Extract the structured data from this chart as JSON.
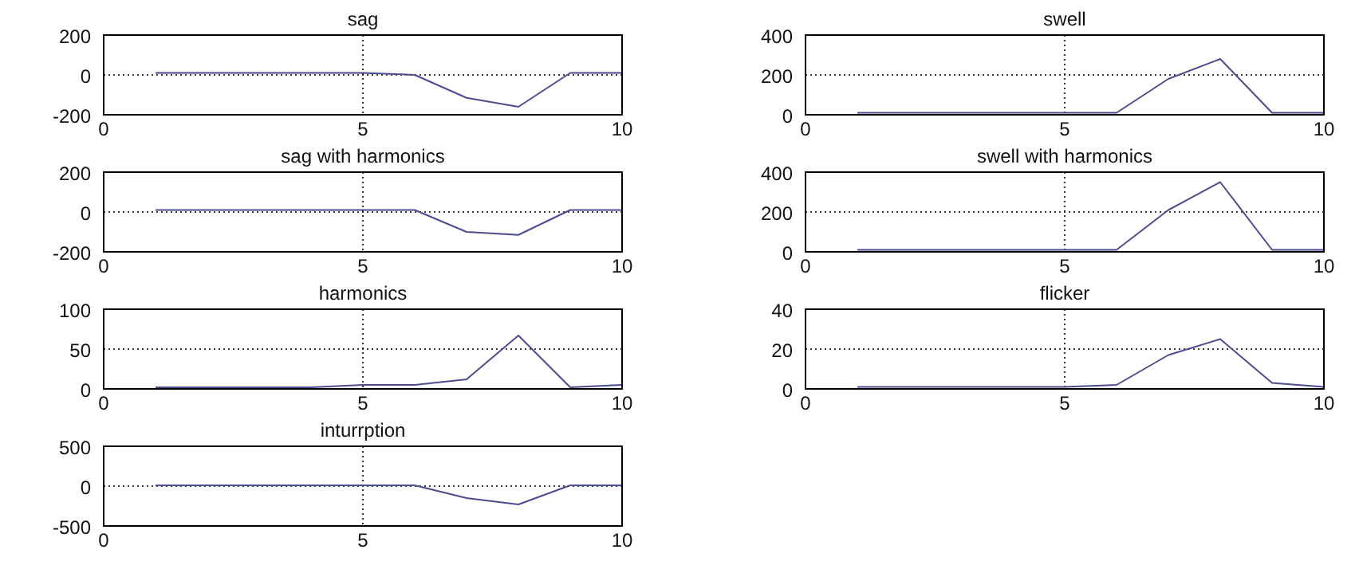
{
  "chart_data": [
    {
      "type": "line",
      "title": "sag",
      "x": [
        1,
        2,
        3,
        4,
        5,
        6,
        7,
        8,
        9,
        10
      ],
      "series": [
        {
          "color": "#4b4b8f",
          "values": [
            10,
            10,
            10,
            10,
            10,
            0,
            -115,
            -160,
            10,
            10
          ]
        }
      ],
      "xlim": [
        0,
        10
      ],
      "xticks": [
        0,
        5,
        10
      ],
      "ylim": [
        -200,
        200
      ],
      "yticks": [
        -200,
        0,
        200
      ],
      "grid": true
    },
    {
      "type": "line",
      "title": "swell",
      "x": [
        1,
        2,
        3,
        4,
        5,
        6,
        7,
        8,
        9,
        10
      ],
      "series": [
        {
          "color": "#4b4b8f",
          "values": [
            10,
            10,
            10,
            10,
            10,
            10,
            180,
            280,
            10,
            10
          ]
        }
      ],
      "xlim": [
        0,
        10
      ],
      "xticks": [
        0,
        5,
        10
      ],
      "ylim": [
        0,
        400
      ],
      "yticks": [
        0,
        200,
        400
      ],
      "grid": true
    },
    {
      "type": "line",
      "title": "sag with harmonics",
      "x": [
        1,
        2,
        3,
        4,
        5,
        6,
        7,
        8,
        9,
        10
      ],
      "series": [
        {
          "color": "#4b4b8f",
          "values": [
            10,
            10,
            10,
            10,
            10,
            10,
            -100,
            -115,
            10,
            10
          ]
        }
      ],
      "xlim": [
        0,
        10
      ],
      "xticks": [
        0,
        5,
        10
      ],
      "ylim": [
        -200,
        200
      ],
      "yticks": [
        -200,
        0,
        200
      ],
      "grid": true
    },
    {
      "type": "line",
      "title": "swell with harmonics",
      "x": [
        1,
        2,
        3,
        4,
        5,
        6,
        7,
        8,
        9,
        10
      ],
      "series": [
        {
          "color": "#4b4b8f",
          "values": [
            10,
            10,
            10,
            10,
            10,
            10,
            210,
            350,
            10,
            10
          ]
        }
      ],
      "xlim": [
        0,
        10
      ],
      "xticks": [
        0,
        5,
        10
      ],
      "ylim": [
        0,
        400
      ],
      "yticks": [
        0,
        200,
        400
      ],
      "grid": true
    },
    {
      "type": "line",
      "title": "harmonics",
      "x": [
        1,
        2,
        3,
        4,
        5,
        6,
        7,
        8,
        9,
        10
      ],
      "series": [
        {
          "color": "#4b4b8f",
          "values": [
            2,
            2,
            2,
            2,
            5,
            5,
            12,
            67,
            2,
            5
          ]
        }
      ],
      "xlim": [
        0,
        10
      ],
      "xticks": [
        0,
        5,
        10
      ],
      "ylim": [
        0,
        100
      ],
      "yticks": [
        0,
        50,
        100
      ],
      "grid": true
    },
    {
      "type": "line",
      "title": "flicker",
      "x": [
        1,
        2,
        3,
        4,
        5,
        6,
        7,
        8,
        9,
        10
      ],
      "series": [
        {
          "color": "#4b4b8f",
          "values": [
            1,
            1,
            1,
            1,
            1,
            2,
            17,
            25,
            3,
            1
          ]
        }
      ],
      "xlim": [
        0,
        10
      ],
      "xticks": [
        0,
        5,
        10
      ],
      "ylim": [
        0,
        40
      ],
      "yticks": [
        0,
        20,
        40
      ],
      "grid": true
    },
    {
      "type": "line",
      "title": "inturrption",
      "x": [
        1,
        2,
        3,
        4,
        5,
        6,
        7,
        8,
        9,
        10
      ],
      "series": [
        {
          "color": "#4b4b8f",
          "values": [
            10,
            10,
            10,
            10,
            10,
            10,
            -150,
            -230,
            10,
            10
          ]
        }
      ],
      "xlim": [
        0,
        10
      ],
      "xticks": [
        0,
        5,
        10
      ],
      "ylim": [
        -500,
        500
      ],
      "yticks": [
        -500,
        0,
        500
      ],
      "grid": true
    }
  ]
}
